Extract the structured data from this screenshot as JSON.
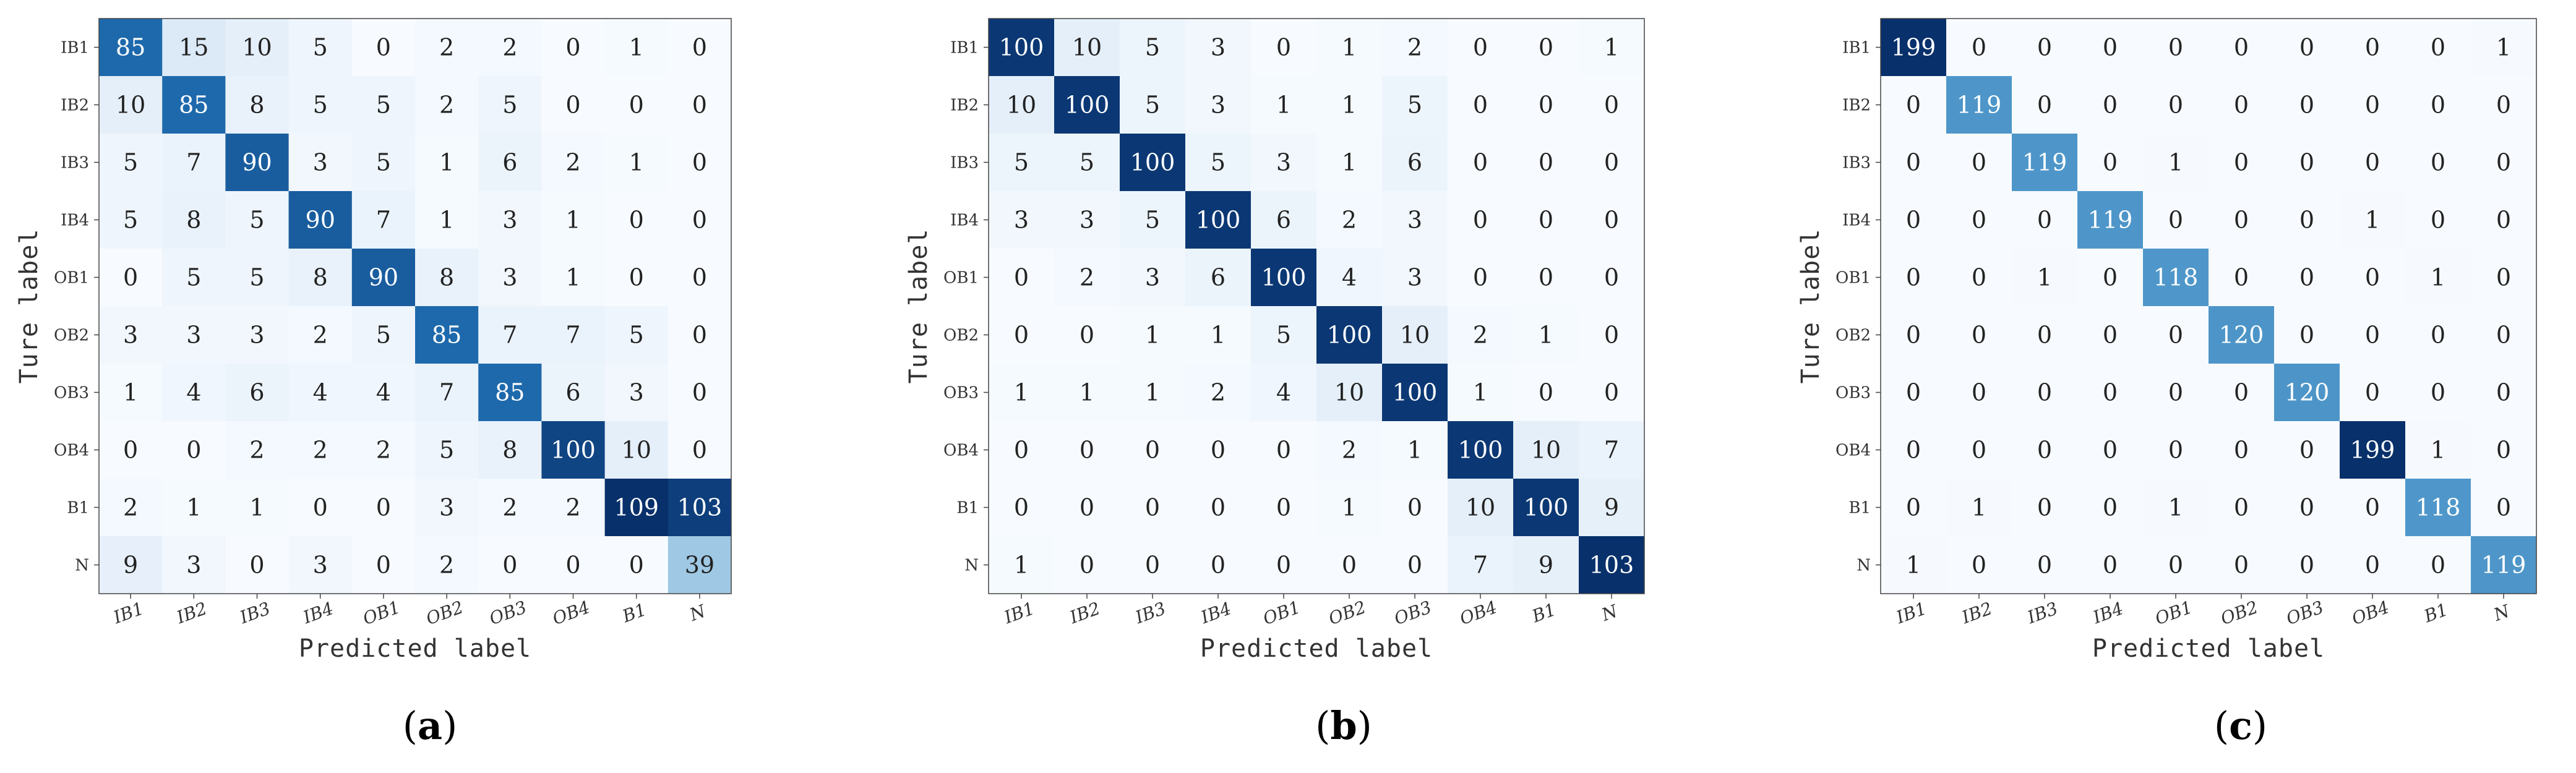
{
  "colors": {
    "cmap_low": "#f7fbff",
    "cmap_high": "#08306b",
    "text_dark": "#222222",
    "text_light": "#ffffff"
  },
  "chart_data": [
    {
      "type": "heatmap",
      "panel_label": {
        "open": "(",
        "letter": "a",
        "close": ")"
      },
      "xlabel": "Predicted label",
      "ylabel": "Ture label",
      "x_categories": [
        "IB1",
        "IB2",
        "IB3",
        "IB4",
        "OB1",
        "OB2",
        "OB3",
        "OB4",
        "B1",
        "N"
      ],
      "y_categories": [
        "IB1",
        "IB2",
        "IB3",
        "IB4",
        "OB1",
        "OB2",
        "OB3",
        "OB4",
        "B1",
        "N"
      ],
      "values": [
        [
          85,
          15,
          10,
          5,
          0,
          2,
          2,
          0,
          1,
          0
        ],
        [
          10,
          85,
          8,
          5,
          5,
          2,
          5,
          0,
          0,
          0
        ],
        [
          5,
          7,
          90,
          3,
          5,
          1,
          6,
          2,
          1,
          0
        ],
        [
          5,
          8,
          5,
          90,
          7,
          1,
          3,
          1,
          0,
          0
        ],
        [
          0,
          5,
          5,
          8,
          90,
          8,
          3,
          1,
          0,
          0
        ],
        [
          3,
          3,
          3,
          2,
          5,
          85,
          7,
          7,
          5,
          0
        ],
        [
          1,
          4,
          6,
          4,
          4,
          7,
          85,
          6,
          3,
          0
        ],
        [
          0,
          0,
          2,
          2,
          2,
          5,
          8,
          100,
          10,
          0
        ],
        [
          2,
          1,
          1,
          0,
          0,
          3,
          2,
          2,
          109,
          103
        ],
        [
          9,
          3,
          0,
          3,
          0,
          2,
          0,
          0,
          0,
          39
        ]
      ],
      "color_scale_max": 109
    },
    {
      "type": "heatmap",
      "panel_label": {
        "open": "(",
        "letter": "b",
        "close": ")"
      },
      "xlabel": "Predicted label",
      "ylabel": "Ture label",
      "x_categories": [
        "IB1",
        "IB2",
        "IB3",
        "IB4",
        "OB1",
        "OB2",
        "OB3",
        "OB4",
        "B1",
        "N"
      ],
      "y_categories": [
        "IB1",
        "IB2",
        "IB3",
        "IB4",
        "OB1",
        "OB2",
        "OB3",
        "OB4",
        "B1",
        "N"
      ],
      "values": [
        [
          100,
          10,
          5,
          3,
          0,
          1,
          2,
          0,
          0,
          1
        ],
        [
          10,
          100,
          5,
          3,
          1,
          1,
          5,
          0,
          0,
          0
        ],
        [
          5,
          5,
          100,
          5,
          3,
          1,
          6,
          0,
          0,
          0
        ],
        [
          3,
          3,
          5,
          100,
          6,
          2,
          3,
          0,
          0,
          0
        ],
        [
          0,
          2,
          3,
          6,
          100,
          4,
          3,
          0,
          0,
          0
        ],
        [
          0,
          0,
          1,
          1,
          5,
          100,
          10,
          2,
          1,
          0
        ],
        [
          1,
          1,
          1,
          2,
          4,
          10,
          100,
          1,
          0,
          0
        ],
        [
          0,
          0,
          0,
          0,
          0,
          2,
          1,
          100,
          10,
          7
        ],
        [
          0,
          0,
          0,
          0,
          0,
          1,
          0,
          10,
          100,
          9
        ],
        [
          1,
          0,
          0,
          0,
          0,
          0,
          0,
          7,
          9,
          103
        ]
      ],
      "color_scale_max": 103
    },
    {
      "type": "heatmap",
      "panel_label": {
        "open": "(",
        "letter": "c",
        "close": ")"
      },
      "xlabel": "Predicted label",
      "ylabel": "Ture label",
      "x_categories": [
        "IB1",
        "IB2",
        "IB3",
        "IB4",
        "OB1",
        "OB2",
        "OB3",
        "OB4",
        "B1",
        "N"
      ],
      "y_categories": [
        "IB1",
        "IB2",
        "IB3",
        "IB4",
        "OB1",
        "OB2",
        "OB3",
        "OB4",
        "B1",
        "N"
      ],
      "values": [
        [
          199,
          0,
          0,
          0,
          0,
          0,
          0,
          0,
          0,
          1
        ],
        [
          0,
          119,
          0,
          0,
          0,
          0,
          0,
          0,
          0,
          0
        ],
        [
          0,
          0,
          119,
          0,
          1,
          0,
          0,
          0,
          0,
          0
        ],
        [
          0,
          0,
          0,
          119,
          0,
          0,
          0,
          1,
          0,
          0
        ],
        [
          0,
          0,
          1,
          0,
          118,
          0,
          0,
          0,
          1,
          0
        ],
        [
          0,
          0,
          0,
          0,
          0,
          120,
          0,
          0,
          0,
          0
        ],
        [
          0,
          0,
          0,
          0,
          0,
          0,
          120,
          0,
          0,
          0
        ],
        [
          0,
          0,
          0,
          0,
          0,
          0,
          0,
          199,
          1,
          0
        ],
        [
          0,
          1,
          0,
          0,
          1,
          0,
          0,
          0,
          118,
          0
        ],
        [
          1,
          0,
          0,
          0,
          0,
          0,
          0,
          0,
          0,
          119
        ]
      ],
      "color_scale_max": 199
    }
  ]
}
